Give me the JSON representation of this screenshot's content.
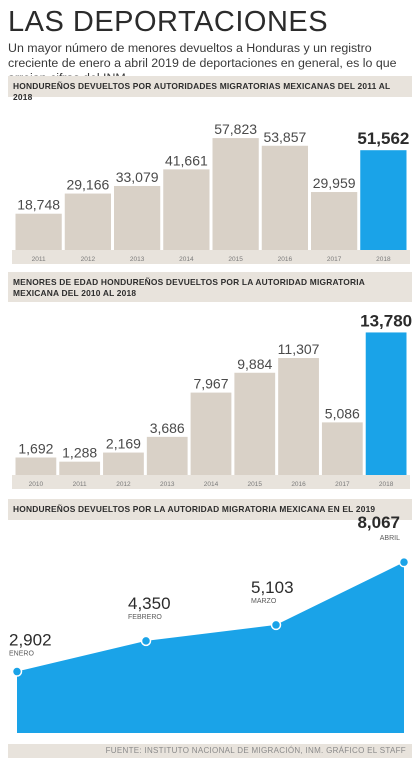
{
  "title": "LAS DEPORTACIONES",
  "subtitle": "Un mayor número de menores devueltos a Honduras y un registro creciente de enero a abril 2019 de deportaciones en general, es lo que arrojan cifras del INM.",
  "source": "FUENTE: INSTITUTO NACIONAL DE MIGRACIÓN, INM. GRÁFICO EL STAFF",
  "colors": {
    "bar": "#d9d1c7",
    "highlight": "#1aa3e8",
    "band": "#e8e3dc",
    "text": "#3a3a3a"
  },
  "chart_data": [
    {
      "type": "bar",
      "title": "HONDUREÑOS DEVUELTOS POR AUTORIDADES MIGRATORIAS MEXICANAS DEL 2011 AL 2018",
      "categories": [
        "2011",
        "2012",
        "2013",
        "2014",
        "2015",
        "2016",
        "2017",
        "2018"
      ],
      "values": [
        18748,
        29166,
        33079,
        41661,
        57823,
        53857,
        29959,
        51562
      ],
      "labels": [
        "18,748",
        "29,166",
        "33,079",
        "41,661",
        "57,823",
        "53,857",
        "29,959",
        "51,562"
      ],
      "highlight_index": 7,
      "ylim": [
        0,
        62000
      ]
    },
    {
      "type": "bar",
      "title": "MENORES DE EDAD HONDUREÑOS DEVUELTOS POR LA AUTORIDAD MIGRATORIA MEXICANA DEL 2010 AL 2018",
      "categories": [
        "2010",
        "2011",
        "2012",
        "2013",
        "2014",
        "2015",
        "2016",
        "2017",
        "2018"
      ],
      "values": [
        1692,
        1288,
        2169,
        3686,
        7967,
        9884,
        11307,
        5086,
        13780
      ],
      "labels": [
        "1,692",
        "1,288",
        "2,169",
        "3,686",
        "7,967",
        "9,884",
        "11,307",
        "5,086",
        "13,780"
      ],
      "highlight_index": 8,
      "ylim": [
        0,
        14500
      ]
    },
    {
      "type": "area",
      "title": "HONDUREÑOS DEVUELTOS POR LA AUTORIDAD MIGRATORIA MEXICANA EN EL 2019",
      "categories": [
        "ENERO",
        "FEBRERO",
        "MARZO",
        "ABRIL"
      ],
      "values": [
        2902,
        4350,
        5103,
        8067
      ],
      "labels": [
        "2,902",
        "4,350",
        "5,103",
        "8,067"
      ],
      "ylim": [
        0,
        8500
      ]
    }
  ]
}
